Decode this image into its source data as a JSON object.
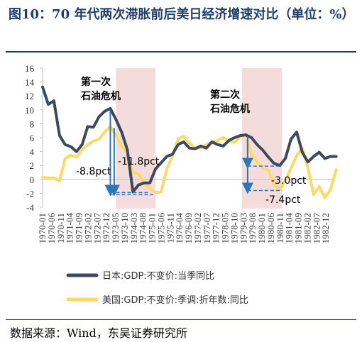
{
  "title": "图10：70 年代两次滞胀前后美日经济增速对比（单位：%）",
  "source": "数据来源：Wind，东吴证券研究所",
  "chart_data": {
    "type": "line",
    "y_ticks": [
      16,
      14,
      12,
      10,
      8,
      6,
      4,
      2,
      0,
      -2,
      -4
    ],
    "ylim": [
      -4,
      16
    ],
    "x_tick_labels": [
      "1970-01",
      "1970-06",
      "1970-11",
      "1971-04",
      "1971-09",
      "1972-02",
      "1972-07",
      "1972-12",
      "1973-05",
      "1973-10",
      "1974-03",
      "1974-08",
      "1975-01",
      "1975-06",
      "1975-11",
      "1976-04",
      "1976-09",
      "1977-02",
      "1977-07",
      "1977-12",
      "1978-05",
      "1978-10",
      "1979-03",
      "1979-08",
      "1980-01",
      "1980-06",
      "1980-11",
      "1981-04",
      "1981-09",
      "1982-02",
      "1982-07",
      "1982-12"
    ],
    "shaded_ranges": [
      [
        1973.25,
        1975.0
      ],
      [
        1978.83,
        1980.6
      ]
    ],
    "callouts": [
      "第一次\n石油危机",
      "第二次\n石油危机"
    ],
    "annotations": [
      "-8.8pct",
      "-11.8pct",
      "-3.0pct",
      "-7.4pct"
    ],
    "colors": {
      "japan": "#3d4a5c",
      "us": "#ffd966",
      "shade": "#f5dcdc",
      "arrow": "#2e75b6"
    },
    "series": [
      {
        "name": "日本:GDP:不变价:当季同比",
        "x": [
          1970.0,
          1970.25,
          1970.5,
          1970.75,
          1971.0,
          1971.25,
          1971.5,
          1971.75,
          1972.0,
          1972.25,
          1972.5,
          1972.75,
          1973.0,
          1973.25,
          1973.5,
          1973.75,
          1974.0,
          1974.25,
          1974.5,
          1974.75,
          1975.0,
          1975.25,
          1975.5,
          1975.75,
          1976.0,
          1976.25,
          1976.5,
          1976.75,
          1977.0,
          1977.25,
          1977.5,
          1977.75,
          1978.0,
          1978.25,
          1978.5,
          1978.75,
          1979.0,
          1979.25,
          1979.5,
          1979.75,
          1980.0,
          1980.25,
          1980.5,
          1980.75,
          1981.0,
          1981.25,
          1981.5,
          1981.75,
          1982.0,
          1982.25,
          1982.5,
          1982.75,
          1983.0
        ],
        "values": [
          13.3,
          10.8,
          11.3,
          6.3,
          5.0,
          4.7,
          4.0,
          5.0,
          7.6,
          7.5,
          9.0,
          9.8,
          10.2,
          8.6,
          6.8,
          4.3,
          -1.8,
          -0.8,
          -0.5,
          -0.5,
          1.5,
          2.4,
          3.3,
          3.6,
          5.0,
          5.4,
          4.5,
          4.4,
          4.8,
          4.5,
          5.4,
          5.0,
          4.8,
          5.6,
          6.0,
          6.3,
          6.4,
          6.0,
          5.0,
          4.2,
          3.2,
          2.3,
          2.0,
          3.0,
          5.8,
          6.8,
          3.9,
          2.5,
          3.3,
          3.9,
          3.0,
          3.3,
          3.3
        ]
      },
      {
        "name": "美国:GDP:不变价:季调:折年数:同比",
        "x": [
          1970.0,
          1970.25,
          1970.5,
          1970.75,
          1971.0,
          1971.25,
          1971.5,
          1971.75,
          1972.0,
          1972.25,
          1972.5,
          1972.75,
          1973.0,
          1973.25,
          1973.5,
          1973.75,
          1974.0,
          1974.25,
          1974.5,
          1974.75,
          1975.0,
          1975.25,
          1975.5,
          1975.75,
          1976.0,
          1976.25,
          1976.5,
          1976.75,
          1977.0,
          1977.25,
          1977.5,
          1977.75,
          1978.0,
          1978.25,
          1978.5,
          1978.75,
          1979.0,
          1979.25,
          1979.5,
          1979.75,
          1980.0,
          1980.25,
          1980.5,
          1980.75,
          1981.0,
          1981.25,
          1981.5,
          1981.75,
          1982.0,
          1982.25,
          1982.5,
          1982.75,
          1983.0
        ],
        "values": [
          0.3,
          0.2,
          0.2,
          -0.2,
          3.0,
          3.5,
          3.2,
          4.3,
          5.0,
          5.5,
          5.8,
          6.8,
          7.6,
          6.3,
          4.8,
          3.9,
          1.0,
          0.8,
          -0.6,
          -1.3,
          -1.9,
          -1.8,
          1.5,
          3.3,
          5.8,
          6.2,
          5.2,
          4.5,
          4.5,
          5.0,
          5.3,
          5.6,
          6.0,
          5.5,
          5.3,
          6.2,
          6.4,
          3.5,
          2.5,
          1.6,
          1.3,
          -0.8,
          -1.5,
          -0.2,
          1.6,
          3.4,
          4.5,
          1.7,
          -2.2,
          -1.0,
          -2.6,
          -1.5,
          1.4
        ]
      }
    ]
  }
}
